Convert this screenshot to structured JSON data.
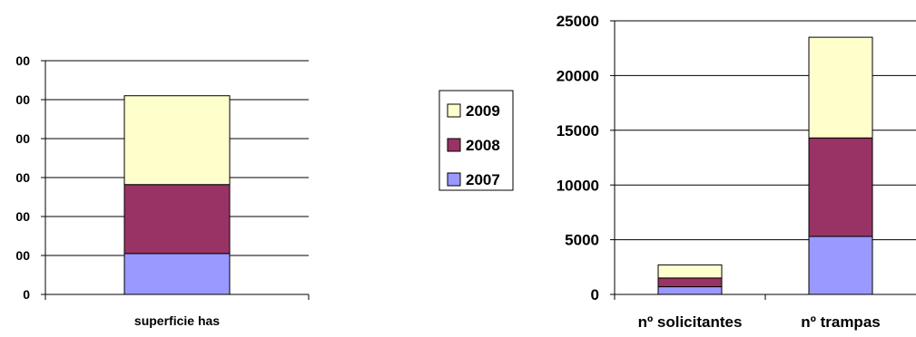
{
  "chart_data": [
    {
      "type": "bar",
      "stacked": true,
      "categories": [
        "superficie has"
      ],
      "y_tick_labels": [
        "0",
        "00",
        "00",
        "00",
        "00",
        "00",
        "00"
      ],
      "y_tick_values": [
        0,
        1,
        2,
        3,
        4,
        5,
        6
      ],
      "ylim": [
        0,
        6
      ],
      "grid": true,
      "series": [
        {
          "name": "2007",
          "color": "#9999ff",
          "values": [
            1.05
          ]
        },
        {
          "name": "2008",
          "color": "#993366",
          "values": [
            1.77
          ]
        },
        {
          "name": "2009",
          "color": "#ffffcc",
          "values": [
            2.28
          ]
        }
      ]
    },
    {
      "type": "bar",
      "stacked": true,
      "categories": [
        "nº solicitantes",
        "nº trampas"
      ],
      "y_tick_labels": [
        "0",
        "5000",
        "10000",
        "15000",
        "20000",
        "25000"
      ],
      "y_tick_values": [
        0,
        5000,
        10000,
        15000,
        20000,
        25000
      ],
      "ylim": [
        0,
        25000
      ],
      "grid": true,
      "series": [
        {
          "name": "2007",
          "color": "#9999ff",
          "values": [
            700,
            5300
          ]
        },
        {
          "name": "2008",
          "color": "#993366",
          "values": [
            800,
            9000
          ]
        },
        {
          "name": "2009",
          "color": "#ffffcc",
          "values": [
            1200,
            9200
          ]
        }
      ]
    }
  ],
  "legend": {
    "position": "center",
    "items": [
      {
        "label": "2009",
        "color": "#ffffcc"
      },
      {
        "label": "2008",
        "color": "#993366"
      },
      {
        "label": "2007",
        "color": "#9999ff"
      }
    ]
  }
}
